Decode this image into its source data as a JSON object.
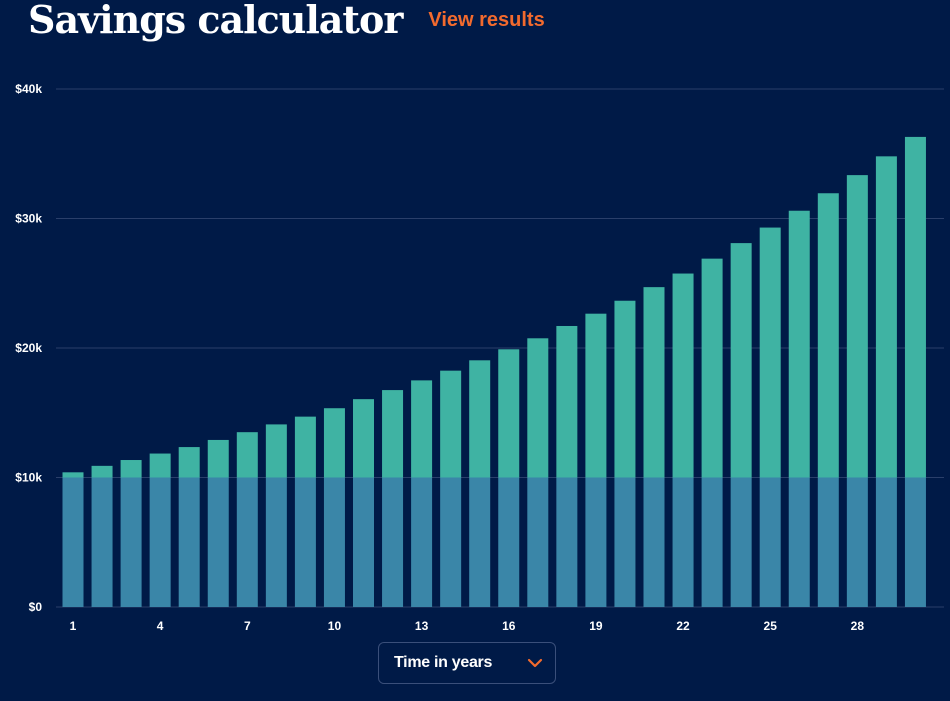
{
  "header": {
    "title": "Savings calculator",
    "view_results_label": "View results"
  },
  "dropdown": {
    "selected": "Time in years",
    "icon": "chevron-down-icon"
  },
  "colors": {
    "background": "#001a47",
    "accent": "#f26a2e",
    "principal": "#3a86a8",
    "interest": "#3fb3a3",
    "grid": "#2a3f6a"
  },
  "chart_data": {
    "type": "bar",
    "stacked": true,
    "x": [
      1,
      2,
      3,
      4,
      5,
      6,
      7,
      8,
      9,
      10,
      11,
      12,
      13,
      14,
      15,
      16,
      17,
      18,
      19,
      20,
      21,
      22,
      23,
      24,
      25,
      26,
      27,
      28,
      29,
      30
    ],
    "x_tick_labels": [
      "1",
      "4",
      "7",
      "10",
      "13",
      "16",
      "19",
      "22",
      "25",
      "28"
    ],
    "x_tick_values": [
      1,
      4,
      7,
      10,
      13,
      16,
      19,
      22,
      25,
      28
    ],
    "y_tick_labels": [
      "$0",
      "$10k",
      "$20k",
      "$30k",
      "$40k"
    ],
    "y_tick_values": [
      0,
      10000,
      20000,
      30000,
      40000
    ],
    "ylim": [
      0,
      40000
    ],
    "grid": true,
    "series": [
      {
        "values": [
          10000,
          10000,
          10000,
          10000,
          10000,
          10000,
          10000,
          10000,
          10000,
          10000,
          10000,
          10000,
          10000,
          10000,
          10000,
          10000,
          10000,
          10000,
          10000,
          10000,
          10000,
          10000,
          10000,
          10000,
          10000,
          10000,
          10000,
          10000,
          10000,
          10000
        ]
      },
      {
        "values": [
          400,
          900,
          1350,
          1850,
          2350,
          2900,
          3500,
          4100,
          4700,
          5350,
          6050,
          6750,
          7500,
          8250,
          9050,
          9900,
          10750,
          11700,
          12650,
          13650,
          14700,
          15750,
          16900,
          18100,
          19300,
          20600,
          21950,
          23350,
          24800,
          26300
        ]
      }
    ],
    "xlabel": "",
    "ylabel": "",
    "title": ""
  }
}
